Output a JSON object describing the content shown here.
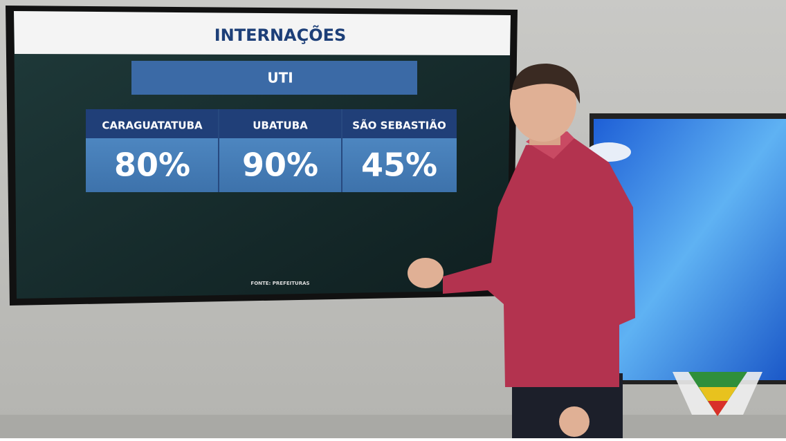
{
  "screen": {
    "title": "INTERNAÇÕES",
    "subtitle": "UTI",
    "table": {
      "headers": [
        "CARAGUATATUBA",
        "UBATUBA",
        "SÃO SEBASTIÃO"
      ],
      "values": [
        "80%",
        "90%",
        "45%"
      ]
    },
    "source": "FONTE: PREFEITURAS"
  }
}
